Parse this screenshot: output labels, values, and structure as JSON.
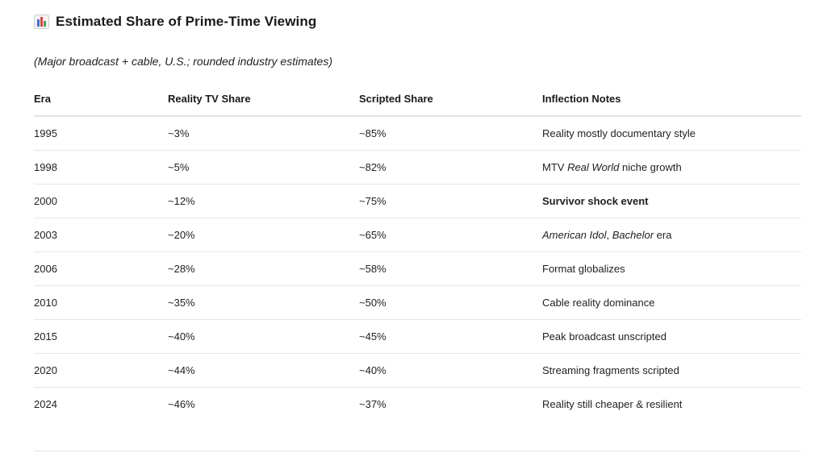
{
  "header": {
    "icon": "bar-chart-icon",
    "title": "Estimated Share of Prime-Time Viewing",
    "subtitle": "(Major broadcast + cable, U.S.; rounded industry estimates)"
  },
  "table": {
    "columns": [
      "Era",
      "Reality TV Share",
      "Scripted Share",
      "Inflection Notes"
    ],
    "rows": [
      {
        "era": "1995",
        "reality": "~3%",
        "scripted": "~85%",
        "note": [
          {
            "t": "Reality mostly documentary style",
            "s": "normal"
          }
        ]
      },
      {
        "era": "1998",
        "reality": "~5%",
        "scripted": "~82%",
        "note": [
          {
            "t": "MTV ",
            "s": "normal"
          },
          {
            "t": "Real World",
            "s": "italic"
          },
          {
            "t": " niche growth",
            "s": "normal"
          }
        ]
      },
      {
        "era": "2000",
        "reality": "~12%",
        "scripted": "~75%",
        "note": [
          {
            "t": "Survivor shock event",
            "s": "bold"
          }
        ]
      },
      {
        "era": "2003",
        "reality": "~20%",
        "scripted": "~65%",
        "note": [
          {
            "t": "American Idol",
            "s": "italic"
          },
          {
            "t": ", ",
            "s": "normal"
          },
          {
            "t": "Bachelor",
            "s": "italic"
          },
          {
            "t": " era",
            "s": "normal"
          }
        ]
      },
      {
        "era": "2006",
        "reality": "~28%",
        "scripted": "~58%",
        "note": [
          {
            "t": "Format globalizes",
            "s": "normal"
          }
        ]
      },
      {
        "era": "2010",
        "reality": "~35%",
        "scripted": "~50%",
        "note": [
          {
            "t": "Cable reality dominance",
            "s": "normal"
          }
        ]
      },
      {
        "era": "2015",
        "reality": "~40%",
        "scripted": "~45%",
        "note": [
          {
            "t": "Peak broadcast unscripted",
            "s": "normal"
          }
        ]
      },
      {
        "era": "2020",
        "reality": "~44%",
        "scripted": "~40%",
        "note": [
          {
            "t": "Streaming fragments scripted",
            "s": "normal"
          }
        ]
      },
      {
        "era": "2024",
        "reality": "~46%",
        "scripted": "~37%",
        "note": [
          {
            "t": "Reality still cheaper & resilient",
            "s": "normal"
          }
        ]
      }
    ]
  },
  "colors": {
    "icon_bar_1": "#3a6fd8",
    "icon_bar_2": "#e0453a",
    "icon_bar_3": "#3aa55a",
    "icon_frame": "#c9ced6",
    "row_divider": "#e6e6e6"
  }
}
